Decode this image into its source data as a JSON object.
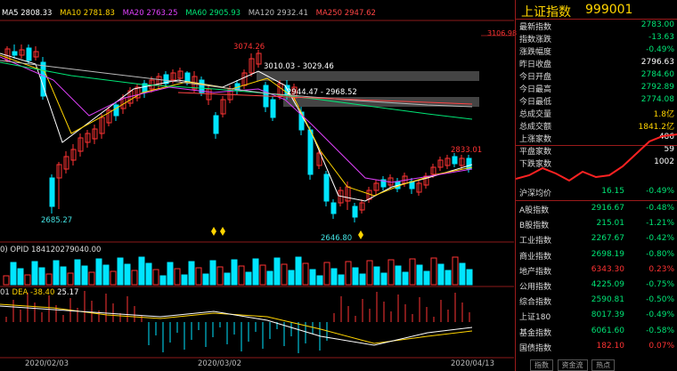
{
  "ma_legend": [
    {
      "label": "MA5 2808.33",
      "color": "#ffffff"
    },
    {
      "label": "MA10 2781.83",
      "color": "#ffd400"
    },
    {
      "label": "MA20 2763.25",
      "color": "#e040fb"
    },
    {
      "label": "MA60 2905.93",
      "color": "#00e676"
    },
    {
      "label": "MA120 2932.41",
      "color": "#bbbbbb"
    },
    {
      "label": "MA250 2947.62",
      "color": "#ff4444"
    }
  ],
  "price_labels": {
    "high": "3074.26",
    "range1": "3010.03 - 3029.46",
    "range2": "2944.47 - 2968.52",
    "right_high": "2833.01",
    "low1": "2685.27",
    "low2": "2646.80",
    "axis_top": "3106.98"
  },
  "opid_label": "0) OPID 184120279040.00",
  "macd_label": {
    "prefix": "01",
    "dea": "DEA -38.40",
    "val": "25.17"
  },
  "dates": [
    "2020/02/03",
    "2020/03/02",
    "2020/04/13"
  ],
  "panel": {
    "title": "上证指数",
    "code": "999001",
    "rows": [
      {
        "label": "最新指数",
        "value": "2783.00",
        "color": "#00e676"
      },
      {
        "label": "指数涨跌",
        "value": "-13.63",
        "color": "#00e676"
      },
      {
        "label": "涨跌幅度",
        "value": "-0.49%",
        "color": "#00e676"
      },
      {
        "label": "昨日收盘",
        "value": "2796.63",
        "color": "#ffffff"
      },
      {
        "label": "今日开盘",
        "value": "2784.60",
        "color": "#00e676"
      },
      {
        "label": "今日最高",
        "value": "2792.89",
        "color": "#00e676"
      },
      {
        "label": "今日最低",
        "value": "2774.08",
        "color": "#00e676"
      },
      {
        "label": "总成交量",
        "value": "1.8亿",
        "color": "#ffd400"
      },
      {
        "label": "总成交额",
        "value": "1841.2亿",
        "color": "#ffd400"
      },
      {
        "label": "上涨家数",
        "value": "486",
        "color": "#ffffff"
      },
      {
        "label": "平盘家数",
        "value": "59",
        "color": "#ffffff"
      },
      {
        "label": "下跌家数",
        "value": "1002",
        "color": "#ffffff"
      }
    ],
    "hushen": {
      "label": "沪深均价",
      "price": "16.15",
      "change": "-0.49%"
    },
    "indices": [
      {
        "label": "A股指数",
        "price": "2916.67",
        "change": "-0.48%",
        "color": "#00e676"
      },
      {
        "label": "B股指数",
        "price": "215.01",
        "change": "-1.21%",
        "color": "#00e676"
      },
      {
        "label": "工业指数",
        "price": "2267.67",
        "change": "-0.42%",
        "color": "#00e676"
      },
      {
        "label": "商业指数",
        "price": "2698.19",
        "change": "-0.80%",
        "color": "#00e676"
      },
      {
        "label": "地产指数",
        "price": "6343.30",
        "change": "0.23%",
        "color": "#ff3333"
      },
      {
        "label": "公用指数",
        "price": "4225.09",
        "change": "-0.75%",
        "color": "#00e676"
      },
      {
        "label": "综合指数",
        "price": "2590.81",
        "change": "-0.50%",
        "color": "#00e676"
      },
      {
        "label": "上证180",
        "price": "8017.39",
        "change": "-0.49%",
        "color": "#00e676"
      },
      {
        "label": "基金指数",
        "price": "6061.60",
        "change": "-0.58%",
        "color": "#00e676"
      },
      {
        "label": "国债指数",
        "price": "182.10",
        "change": "0.07%",
        "color": "#ff3333"
      }
    ],
    "tabs": [
      "指数",
      "资金流",
      "热点"
    ]
  }
}
